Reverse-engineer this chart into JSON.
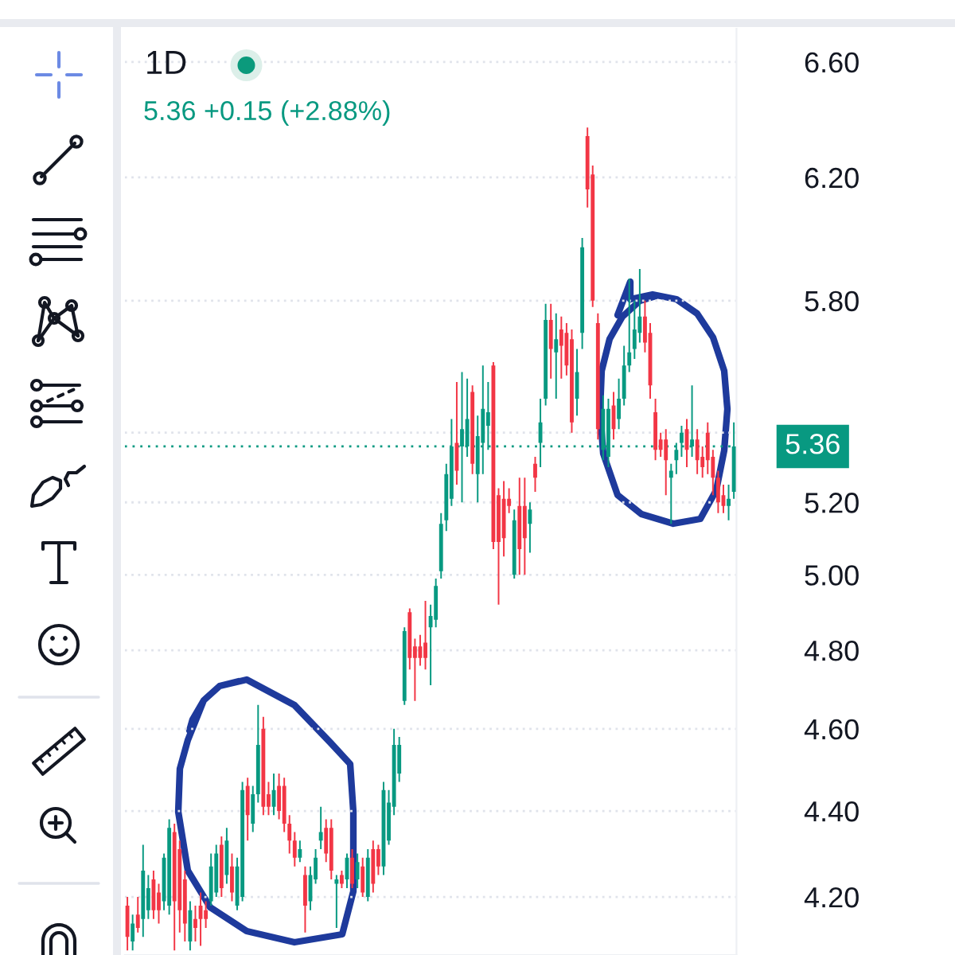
{
  "chart_data": {
    "type": "candlestick",
    "title": "1D",
    "subtitle": "5.36 +0.15 (+2.88%)",
    "categories": [
      null,
      null,
      null,
      null,
      null,
      null,
      null,
      null,
      null,
      null,
      null,
      null,
      null,
      null,
      null,
      null,
      null,
      null,
      null,
      null,
      null,
      null,
      null,
      null,
      null,
      null,
      null,
      null,
      null,
      null,
      null,
      null,
      null,
      null,
      null,
      null,
      null,
      null,
      null,
      null,
      null,
      null,
      null,
      null,
      null,
      null,
      null,
      null,
      null,
      null,
      null,
      null,
      null,
      null,
      null,
      null,
      null,
      null,
      null,
      null,
      null,
      null,
      null,
      null,
      null,
      null,
      null,
      null,
      null,
      null,
      null,
      null,
      null,
      null,
      null,
      null,
      null,
      null,
      null,
      null,
      null,
      null,
      null,
      null,
      null,
      null,
      null,
      null,
      null,
      null,
      null,
      null,
      null,
      null,
      null,
      null,
      null,
      null,
      null,
      null,
      null,
      null,
      null,
      null,
      null,
      null,
      null,
      null,
      null,
      null,
      null,
      null,
      null,
      null,
      null,
      null,
      null
    ],
    "ohlc": [
      [
        4.18,
        4.2,
        4.08,
        4.11
      ],
      [
        4.1,
        4.16,
        4.08,
        4.14
      ],
      [
        4.16,
        4.2,
        4.12,
        4.13
      ],
      [
        4.15,
        4.32,
        4.11,
        4.26
      ],
      [
        4.17,
        4.25,
        4.15,
        4.22
      ],
      [
        4.24,
        4.26,
        4.15,
        4.17
      ],
      [
        4.21,
        4.23,
        4.14,
        4.17
      ],
      [
        4.19,
        4.3,
        4.17,
        4.29
      ],
      [
        4.18,
        4.38,
        4.16,
        4.36
      ],
      [
        4.35,
        4.37,
        4.08,
        4.19
      ],
      [
        4.31,
        4.33,
        4.12,
        4.17
      ],
      [
        4.24,
        4.26,
        4.1,
        4.14
      ],
      [
        4.1,
        4.19,
        4.08,
        4.17
      ],
      [
        4.15,
        4.18,
        4.1,
        4.13
      ],
      [
        4.18,
        4.21,
        4.09,
        4.15
      ],
      [
        4.17,
        4.19,
        4.13,
        4.15
      ],
      [
        4.19,
        4.3,
        4.18,
        4.27
      ],
      [
        4.21,
        4.32,
        4.2,
        4.3
      ],
      [
        4.32,
        4.34,
        4.2,
        4.22
      ],
      [
        4.25,
        4.36,
        4.23,
        4.33
      ],
      [
        4.27,
        4.3,
        4.19,
        4.21
      ],
      [
        4.18,
        4.29,
        4.17,
        4.27
      ],
      [
        4.2,
        4.47,
        4.19,
        4.45
      ],
      [
        4.46,
        4.48,
        4.33,
        4.39
      ],
      [
        4.37,
        4.46,
        4.35,
        4.44
      ],
      [
        4.44,
        4.66,
        4.42,
        4.56
      ],
      [
        4.6,
        4.63,
        4.39,
        4.41
      ],
      [
        4.44,
        4.47,
        4.39,
        4.41
      ],
      [
        4.41,
        4.49,
        4.39,
        4.45
      ],
      [
        4.46,
        4.49,
        4.38,
        4.4
      ],
      [
        4.46,
        4.48,
        4.35,
        4.37
      ],
      [
        4.37,
        4.39,
        4.3,
        4.33
      ],
      [
        4.33,
        4.35,
        4.27,
        4.29
      ],
      [
        4.29,
        4.33,
        4.28,
        4.31
      ],
      [
        4.25,
        4.27,
        4.12,
        4.18
      ],
      [
        4.19,
        4.27,
        4.17,
        4.25
      ],
      [
        4.24,
        4.31,
        4.23,
        4.29
      ],
      [
        4.33,
        4.41,
        4.31,
        4.35
      ],
      [
        4.36,
        4.38,
        4.28,
        4.3
      ],
      [
        4.36,
        4.38,
        4.24,
        4.26
      ],
      [
        4.23,
        4.25,
        4.13,
        4.24
      ],
      [
        4.25,
        4.26,
        4.22,
        4.23
      ],
      [
        4.24,
        4.3,
        4.22,
        4.29
      ],
      [
        4.29,
        4.31,
        4.22,
        4.23
      ],
      [
        4.24,
        4.3,
        4.22,
        4.28
      ],
      [
        4.27,
        4.29,
        4.2,
        4.21
      ],
      [
        4.2,
        4.31,
        4.19,
        4.29
      ],
      [
        4.31,
        4.33,
        4.21,
        4.23
      ],
      [
        4.31,
        4.32,
        4.25,
        4.27
      ],
      [
        4.27,
        4.47,
        4.25,
        4.45
      ],
      [
        4.33,
        4.45,
        4.32,
        4.42
      ],
      [
        4.41,
        4.6,
        4.39,
        4.56
      ],
      [
        4.49,
        4.58,
        4.47,
        4.56
      ],
      [
        4.67,
        4.86,
        4.66,
        4.85
      ],
      [
        4.9,
        4.91,
        4.75,
        4.78
      ],
      [
        4.81,
        4.83,
        4.67,
        4.78
      ],
      [
        4.81,
        4.84,
        4.76,
        4.78
      ],
      [
        4.82,
        4.93,
        4.75,
        4.78
      ],
      [
        4.86,
        4.92,
        4.71,
        4.89
      ],
      [
        4.88,
        4.99,
        4.86,
        4.97
      ],
      [
        5.01,
        5.17,
        4.99,
        5.14
      ],
      [
        5.15,
        5.31,
        5.12,
        5.28
      ],
      [
        5.21,
        5.44,
        5.19,
        5.36
      ],
      [
        5.37,
        5.55,
        5.25,
        5.29
      ],
      [
        5.36,
        5.58,
        5.2,
        5.41
      ],
      [
        5.36,
        5.56,
        5.33,
        5.44
      ],
      [
        5.52,
        5.54,
        5.28,
        5.31
      ],
      [
        5.28,
        5.45,
        5.2,
        5.39
      ],
      [
        5.37,
        5.6,
        5.28,
        5.47
      ],
      [
        5.42,
        5.55,
        5.35,
        5.46
      ],
      [
        5.6,
        5.61,
        5.07,
        5.09
      ],
      [
        5.22,
        5.24,
        4.92,
        5.09
      ],
      [
        5.21,
        5.26,
        5.05,
        5.1
      ],
      [
        5.21,
        5.24,
        5.17,
        5.19
      ],
      [
        5.0,
        5.18,
        4.99,
        5.15
      ],
      [
        5.19,
        5.27,
        5.0,
        5.07
      ],
      [
        5.19,
        5.27,
        5.0,
        5.1
      ],
      [
        5.14,
        5.2,
        5.06,
        5.18
      ],
      [
        5.31,
        5.33,
        5.23,
        5.27
      ],
      [
        5.37,
        5.5,
        5.3,
        5.43
      ],
      [
        5.5,
        5.79,
        5.48,
        5.74
      ],
      [
        5.74,
        5.79,
        5.56,
        5.65
      ],
      [
        5.64,
        5.76,
        5.5,
        5.68
      ],
      [
        5.71,
        5.75,
        5.56,
        5.66
      ],
      [
        5.7,
        5.73,
        5.57,
        5.6
      ],
      [
        5.68,
        5.71,
        5.4,
        5.43
      ],
      [
        5.5,
        5.65,
        5.45,
        5.58
      ],
      [
        5.7,
        6.0,
        5.65,
        5.97
      ],
      [
        6.34,
        6.37,
        6.1,
        6.16
      ],
      [
        6.21,
        6.24,
        5.78,
        5.8
      ],
      [
        5.73,
        5.76,
        5.38,
        5.41
      ],
      [
        5.35,
        5.51,
        5.32,
        5.47
      ],
      [
        5.33,
        5.5,
        5.3,
        5.47
      ],
      [
        5.48,
        5.52,
        5.38,
        5.41
      ],
      [
        5.44,
        5.56,
        5.41,
        5.5
      ],
      [
        5.5,
        5.66,
        5.48,
        5.6
      ],
      [
        5.6,
        5.87,
        5.58,
        5.64
      ],
      [
        5.65,
        5.8,
        5.62,
        5.71
      ],
      [
        5.7,
        5.9,
        5.67,
        5.75
      ],
      [
        5.75,
        5.8,
        5.64,
        5.67
      ],
      [
        5.7,
        5.73,
        5.5,
        5.54
      ],
      [
        5.46,
        5.5,
        5.32,
        5.35
      ],
      [
        5.38,
        5.4,
        5.33,
        5.35
      ],
      [
        5.38,
        5.41,
        5.22,
        5.32
      ],
      [
        5.27,
        5.31,
        5.14,
        5.29
      ],
      [
        5.32,
        5.37,
        5.28,
        5.35
      ],
      [
        5.37,
        5.42,
        5.33,
        5.4
      ],
      [
        5.41,
        5.44,
        5.3,
        5.35
      ],
      [
        5.36,
        5.54,
        5.33,
        5.38
      ],
      [
        5.38,
        5.41,
        5.28,
        5.32
      ],
      [
        5.33,
        5.36,
        5.27,
        5.3
      ],
      [
        5.4,
        5.43,
        5.28,
        5.32
      ],
      [
        5.33,
        5.35,
        5.22,
        5.27
      ],
      [
        5.27,
        5.29,
        5.17,
        5.2
      ],
      [
        5.22,
        5.25,
        5.17,
        5.19
      ],
      [
        5.19,
        5.25,
        5.15,
        5.21
      ],
      [
        5.23,
        5.43,
        5.21,
        5.36
      ]
    ],
    "colors": [
      "#f23645",
      "#089981",
      "#f23645",
      "#089981",
      "#089981",
      "#f23645",
      "#f23645",
      "#089981",
      "#089981",
      "#f23645",
      "#f23645",
      "#f23645",
      "#089981",
      "#f23645",
      "#f23645",
      "#f23645",
      "#089981",
      "#089981",
      "#f23645",
      "#089981",
      "#f23645",
      "#089981",
      "#089981",
      "#f23645",
      "#089981",
      "#089981",
      "#f23645",
      "#f23645",
      "#089981",
      "#f23645",
      "#f23645",
      "#f23645",
      "#f23645",
      "#089981",
      "#f23645",
      "#089981",
      "#089981",
      "#089981",
      "#f23645",
      "#f23645",
      "#089981",
      "#f23645",
      "#089981",
      "#f23645",
      "#089981",
      "#f23645",
      "#089981",
      "#f23645",
      "#f23645",
      "#089981",
      "#089981",
      "#089981",
      "#089981",
      "#089981",
      "#f23645",
      "#f23645",
      "#f23645",
      "#f23645",
      "#089981",
      "#089981",
      "#089981",
      "#089981",
      "#089981",
      "#f23645",
      "#089981",
      "#089981",
      "#f23645",
      "#089981",
      "#089981",
      "#089981",
      "#f23645",
      "#f23645",
      "#f23645",
      "#f23645",
      "#089981",
      "#f23645",
      "#f23645",
      "#089981",
      "#f23645",
      "#089981",
      "#089981",
      "#f23645",
      "#089981",
      "#f23645",
      "#f23645",
      "#f23645",
      "#089981",
      "#089981",
      "#f23645",
      "#f23645",
      "#f23645",
      "#089981",
      "#089981",
      "#f23645",
      "#089981",
      "#089981",
      "#089981",
      "#089981",
      "#089981",
      "#f23645",
      "#f23645",
      "#f23645",
      "#f23645",
      "#f23645",
      "#089981",
      "#089981",
      "#089981",
      "#f23645",
      "#089981",
      "#f23645",
      "#f23645",
      "#f23645",
      "#f23645",
      "#f23645",
      "#f23645",
      "#089981",
      "#089981"
    ],
    "log": true,
    "ylim": [
      4.07,
      6.72
    ],
    "yticks": [
      {
        "value": 4.2,
        "label": "4.20"
      },
      {
        "value": 4.4,
        "label": "4.40"
      },
      {
        "value": 4.6,
        "label": "4.60"
      },
      {
        "value": 4.8,
        "label": "4.80"
      },
      {
        "value": 5.0,
        "label": "5.00"
      },
      {
        "value": 5.2,
        "label": "5.20"
      },
      {
        "value": 5.4,
        "label": null
      },
      {
        "value": 5.8,
        "label": "5.80"
      },
      {
        "value": 6.2,
        "label": "6.20"
      },
      {
        "value": 6.6,
        "label": "6.60"
      }
    ],
    "grid": "y",
    "tick_labels": "y",
    "ref_lines": [
      {
        "axis": "y",
        "value": 5.36,
        "label": "5.36",
        "color": "#089981",
        "line_style": "dotted"
      }
    ]
  }
}
